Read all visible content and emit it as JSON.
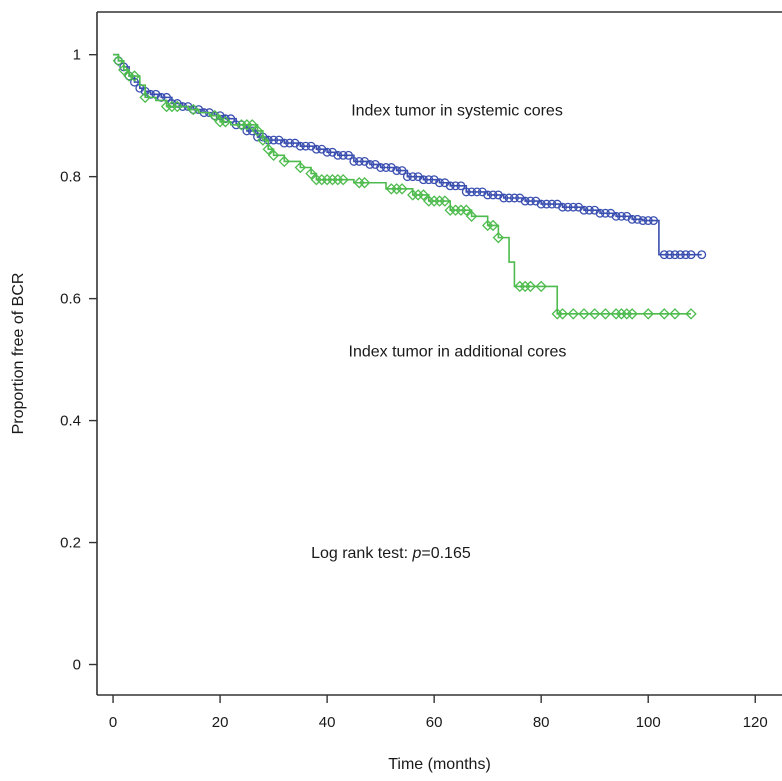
{
  "chart_data": {
    "type": "line",
    "xlabel": "Time (months)",
    "ylabel": "Proportion free of BCR",
    "xlim": [
      -3,
      125
    ],
    "ylim": [
      -0.05,
      1.07
    ],
    "x_ticks": [
      0,
      20,
      40,
      60,
      80,
      100,
      120
    ],
    "x_tick_labels": [
      "0",
      "20",
      "40",
      "60",
      "80",
      "100",
      "120"
    ],
    "y_ticks": [
      0,
      0.2,
      0.4,
      0.6,
      0.8,
      1
    ],
    "y_tick_labels": [
      "0",
      "0.2",
      "0.4",
      "0.6",
      "0.8",
      "1"
    ],
    "grid": false,
    "series": [
      {
        "name": "Index tumor in systemic cores",
        "color": "#3a4fb0",
        "marker": "circle",
        "step": [
          [
            0,
            1.0
          ],
          [
            1,
            0.99
          ],
          [
            2,
            0.98
          ],
          [
            3,
            0.965
          ],
          [
            4,
            0.955
          ],
          [
            5,
            0.945
          ],
          [
            6,
            0.94
          ],
          [
            7,
            0.935
          ],
          [
            9,
            0.93
          ],
          [
            11,
            0.92
          ],
          [
            13,
            0.915
          ],
          [
            15,
            0.91
          ],
          [
            17,
            0.905
          ],
          [
            19,
            0.9
          ],
          [
            21,
            0.895
          ],
          [
            23,
            0.885
          ],
          [
            25,
            0.875
          ],
          [
            27,
            0.865
          ],
          [
            29,
            0.86
          ],
          [
            32,
            0.855
          ],
          [
            35,
            0.85
          ],
          [
            38,
            0.845
          ],
          [
            40,
            0.84
          ],
          [
            42,
            0.835
          ],
          [
            45,
            0.825
          ],
          [
            48,
            0.82
          ],
          [
            50,
            0.815
          ],
          [
            53,
            0.81
          ],
          [
            55,
            0.8
          ],
          [
            58,
            0.795
          ],
          [
            61,
            0.79
          ],
          [
            63,
            0.785
          ],
          [
            66,
            0.775
          ],
          [
            70,
            0.77
          ],
          [
            73,
            0.765
          ],
          [
            77,
            0.76
          ],
          [
            80,
            0.755
          ],
          [
            84,
            0.75
          ],
          [
            88,
            0.745
          ],
          [
            91,
            0.74
          ],
          [
            94,
            0.735
          ],
          [
            97,
            0.73
          ],
          [
            99,
            0.728
          ],
          [
            102,
            0.672
          ],
          [
            110,
            0.672
          ]
        ],
        "censored": [
          1,
          2,
          3,
          4,
          5,
          6,
          7,
          8,
          9,
          10,
          11,
          12,
          13,
          14,
          15,
          16,
          17,
          18,
          19,
          20,
          21,
          22,
          23,
          24,
          25,
          26,
          27,
          28,
          29,
          30,
          31,
          32,
          33,
          34,
          35,
          36,
          37,
          38,
          39,
          40,
          41,
          42,
          43,
          44,
          45,
          46,
          47,
          48,
          49,
          50,
          51,
          52,
          53,
          54,
          55,
          56,
          57,
          58,
          59,
          60,
          61,
          62,
          63,
          64,
          65,
          66,
          67,
          68,
          69,
          70,
          71,
          72,
          73,
          74,
          75,
          76,
          77,
          78,
          79,
          80,
          81,
          82,
          83,
          84,
          85,
          86,
          87,
          88,
          89,
          90,
          91,
          92,
          93,
          94,
          95,
          96,
          97,
          98,
          99,
          100,
          101,
          103,
          104,
          105,
          106,
          107,
          108,
          110
        ]
      },
      {
        "name": "Index tumor in additional cores",
        "color": "#4dbb4d",
        "marker": "diamond",
        "step": [
          [
            0,
            1.0
          ],
          [
            1,
            0.99
          ],
          [
            2,
            0.975
          ],
          [
            3,
            0.965
          ],
          [
            5,
            0.95
          ],
          [
            6,
            0.93
          ],
          [
            8,
            0.925
          ],
          [
            10,
            0.915
          ],
          [
            14,
            0.91
          ],
          [
            16,
            0.905
          ],
          [
            18,
            0.9
          ],
          [
            20,
            0.89
          ],
          [
            22,
            0.885
          ],
          [
            27,
            0.875
          ],
          [
            28,
            0.86
          ],
          [
            29,
            0.845
          ],
          [
            30,
            0.835
          ],
          [
            32,
            0.825
          ],
          [
            35,
            0.815
          ],
          [
            37,
            0.805
          ],
          [
            38,
            0.795
          ],
          [
            45,
            0.79
          ],
          [
            51,
            0.78
          ],
          [
            56,
            0.77
          ],
          [
            59,
            0.76
          ],
          [
            63,
            0.745
          ],
          [
            67,
            0.735
          ],
          [
            70,
            0.72
          ],
          [
            72,
            0.7
          ],
          [
            74,
            0.66
          ],
          [
            75,
            0.62
          ],
          [
            83,
            0.575
          ],
          [
            108,
            0.575
          ]
        ],
        "censored": [
          1,
          2,
          3,
          4,
          6,
          10,
          11,
          12,
          15,
          19,
          20,
          21,
          24,
          25,
          26,
          27,
          28,
          29,
          30,
          32,
          35,
          37,
          38,
          39,
          40,
          41,
          42,
          43,
          46,
          47,
          52,
          53,
          54,
          56,
          57,
          58,
          59,
          60,
          61,
          62,
          63,
          64,
          65,
          66,
          67,
          70,
          71,
          72,
          76,
          77,
          78,
          80,
          83,
          84,
          86,
          88,
          90,
          92,
          94,
          95,
          96,
          97,
          100,
          103,
          105,
          108
        ]
      }
    ],
    "annotations": [
      {
        "text": "Index tumor in systemic cores",
        "x": 44.5,
        "y": 0.9
      },
      {
        "text": "Index tumor in additional cores",
        "x": 44,
        "y": 0.505
      },
      {
        "text_prefix": "Log rank test: ",
        "text_italic": "p",
        "text_suffix": "=0.165",
        "x": 37,
        "y": 0.175
      }
    ]
  }
}
